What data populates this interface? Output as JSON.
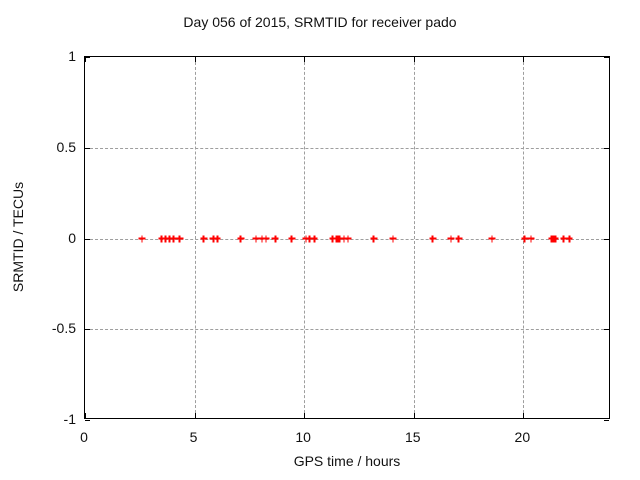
{
  "colors": {
    "marker": "#ff0000",
    "grid": "#9e9e9e",
    "border": "#000000",
    "background": "#ffffff",
    "text": "#111111"
  },
  "chart_data": {
    "type": "scatter",
    "title": "Day 056 of 2015, SRMTID for receiver pado",
    "xlabel": "GPS time / hours",
    "ylabel": "SRMTID / TECUs",
    "xlim": [
      0,
      24
    ],
    "ylim": [
      -1,
      1
    ],
    "xticks": [
      0,
      5,
      10,
      15,
      20
    ],
    "xtick_labels": [
      "0",
      "5",
      "10",
      "15",
      "20"
    ],
    "yticks": [
      -1,
      -0.5,
      0,
      0.5,
      1
    ],
    "ytick_labels": [
      "-1",
      "-0.5",
      "0",
      "0.5",
      "1"
    ],
    "grid": true,
    "legend": false,
    "marker_style": "plus",
    "series": [
      {
        "name": "SRMTID",
        "color": "#ff0000",
        "x": [
          2.6,
          3.5,
          3.68,
          3.86,
          4.05,
          4.33,
          5.41,
          5.85,
          6.04,
          7.1,
          7.8,
          8.08,
          8.26,
          8.68,
          9.44,
          10.08,
          10.26,
          10.46,
          11.31,
          11.48,
          11.55,
          11.62,
          11.82,
          12.0,
          13.18,
          14.05,
          15.87,
          16.7,
          17.06,
          18.57,
          20.07,
          20.35,
          21.3,
          21.34,
          21.38,
          21.42,
          21.46,
          21.85,
          22.1
        ],
        "y": [
          0,
          0,
          0,
          0,
          0,
          0,
          0,
          0,
          0,
          0,
          0,
          0,
          0,
          0,
          0,
          0,
          0,
          0,
          0,
          0,
          0,
          0,
          0,
          0,
          0,
          0,
          0,
          0,
          0,
          0,
          0,
          0,
          0,
          0,
          0,
          0,
          0,
          0,
          0
        ]
      }
    ]
  }
}
